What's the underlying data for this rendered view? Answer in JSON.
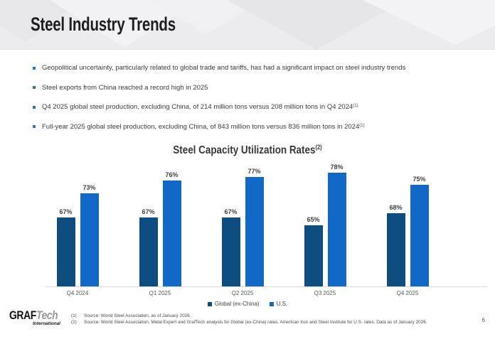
{
  "page": {
    "title": "Steel Industry Trends",
    "page_number": "6"
  },
  "bullets": [
    {
      "text": "Geopolitical uncertainty, particularly related to global trade and tariffs, has had a significant impact on steel industry trends",
      "sup": ""
    },
    {
      "text": "Steel exports from China reached a record high in 2025",
      "sup": ""
    },
    {
      "text": "Q4 2025 global steel production, excluding China, of 214 million tons versus 208 million tons in Q4 2024",
      "sup": "(1)"
    },
    {
      "text": "Full-year 2025 global steel production, excluding China, of 843 million tons versus 836 million tons in 2024",
      "sup": "(1)"
    }
  ],
  "chart_data": {
    "type": "bar",
    "title": "Steel Capacity Utilization Rates",
    "title_superscript": "(2)",
    "categories": [
      "Q4 2024",
      "Q1 2025",
      "Q2 2025",
      "Q3 2025",
      "Q4 2025"
    ],
    "series": [
      {
        "name": "Global (ex-China)",
        "color": "#0E4D80",
        "values": [
          67,
          67,
          67,
          65,
          68
        ]
      },
      {
        "name": "U.S.",
        "color": "#1168C6",
        "values": [
          73,
          76,
          77,
          78,
          75
        ]
      }
    ],
    "value_suffix": "%",
    "ylim": [
      50,
      80
    ],
    "grid": false,
    "legend_position": "bottom"
  },
  "footnotes": [
    {
      "num": "(1)",
      "text": "Source: World Steel Association, as of January 2026."
    },
    {
      "num": "(2)",
      "text": "Source: World Steel Association, Metal Expert and GrafTech analysis for Global (ex-China) rates.  American Iron and Steel Institute for U.S. rates.  Data as of January 2026."
    }
  ],
  "logo": {
    "part1": "GRAF",
    "part2": "Tech",
    "subtitle": "International"
  },
  "colors": {
    "accent_blue": "#2E74C4",
    "bar_dark": "#0E4D80",
    "bar_light": "#1168C6",
    "header_bg": "#ECECEE",
    "axis_line": "#D9D9D9"
  }
}
